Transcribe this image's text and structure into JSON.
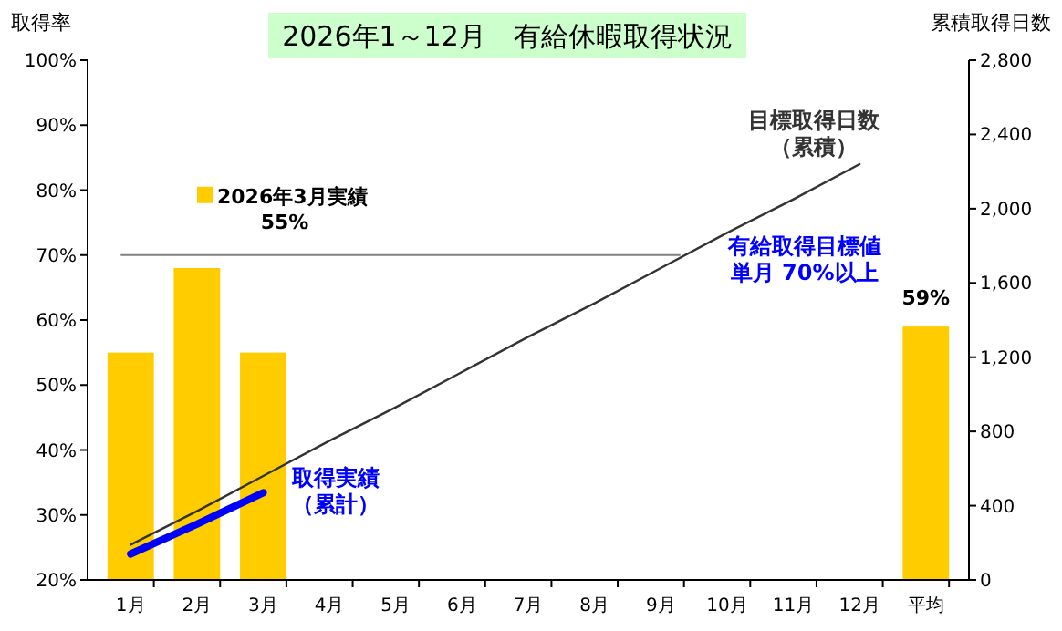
{
  "chart_data": {
    "type": "bar",
    "title": "2026年1～12月　有給休暇取得状況",
    "ylabel": "取得率",
    "y2label": "累積取得日数",
    "categories": [
      "1月",
      "2月",
      "3月",
      "4月",
      "5月",
      "6月",
      "7月",
      "8月",
      "9月",
      "10月",
      "11月",
      "12月",
      "平均"
    ],
    "series": [
      {
        "name": "2026年3月実績",
        "color": "#ffcc00",
        "values": [
          55,
          68,
          55,
          null,
          null,
          null,
          null,
          null,
          null,
          null,
          null,
          null,
          59
        ],
        "value_labels": [
          null,
          null,
          null,
          null,
          null,
          null,
          null,
          null,
          null,
          null,
          null,
          null,
          "59%"
        ]
      },
      {
        "name": "目標取得日数（累積）",
        "type": "line",
        "axis": "y2",
        "color": "#333333",
        "values": [
          190,
          370,
          560,
          750,
          930,
          1120,
          1310,
          1490,
          1680,
          1870,
          2050,
          2240,
          null
        ]
      },
      {
        "name": "取得実績（累計）",
        "type": "line",
        "axis": "y2",
        "color": "#0000ff",
        "values": [
          140,
          300,
          470,
          null,
          null,
          null,
          null,
          null,
          null,
          null,
          null,
          null,
          null
        ]
      }
    ],
    "ylim": [
      20,
      100
    ],
    "yticks": [
      {
        "value": 20,
        "label": "20%"
      },
      {
        "value": 30,
        "label": "30%"
      },
      {
        "value": 40,
        "label": "40%"
      },
      {
        "value": 50,
        "label": "50%"
      },
      {
        "value": 60,
        "label": "60%"
      },
      {
        "value": 70,
        "label": "70%"
      },
      {
        "value": 80,
        "label": "80%"
      },
      {
        "value": 90,
        "label": "90%"
      },
      {
        "value": 100,
        "label": "100%"
      }
    ],
    "y2lim": [
      0,
      2800
    ],
    "y2ticks": [
      0,
      400,
      800,
      {
        "value": 1200,
        "label": "1,200"
      },
      {
        "value": 1600,
        "label": "1,600"
      },
      {
        "value": 2000,
        "label": "2,000"
      },
      {
        "value": 2400,
        "label": "2,400"
      },
      {
        "value": 2800,
        "label": "2,800"
      }
    ],
    "ref_lines": [
      {
        "axis": "y",
        "value": 70,
        "label": "有給取得目標値単月 70%以上",
        "color": "#808080"
      }
    ],
    "annotations": [
      "55%"
    ],
    "legend": "top left",
    "grid": false
  }
}
